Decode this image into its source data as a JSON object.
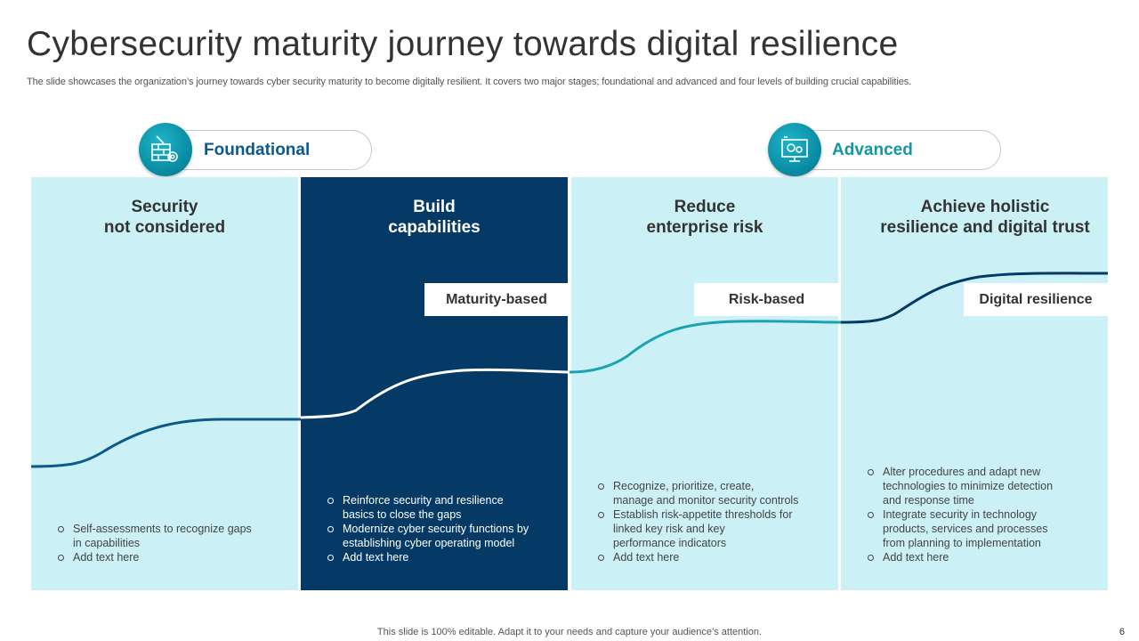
{
  "title": "Cybersecurity maturity journey towards digital resilience",
  "subtitle": "The slide showcases the organization’s journey towards cyber security maturity to become digitally resilient. It covers two major stages; foundational and advanced and four levels of building crucial capabilities.",
  "stages": {
    "foundational": {
      "label": "Foundational",
      "icon": "security-wall-gear-icon",
      "color": "#0c5a8c"
    },
    "advanced": {
      "label": "Advanced",
      "icon": "monitor-gears-icon",
      "color": "#1595a5"
    }
  },
  "columns": [
    {
      "title_lines": [
        "Security",
        "not considered"
      ],
      "bullets": [
        [
          "Self-assessments to recognize gaps",
          "in capabilities"
        ],
        [
          "Add text here"
        ]
      ]
    },
    {
      "title_lines": [
        "Build",
        "capabilities"
      ],
      "tag": "Maturity-based",
      "bullets": [
        [
          "Reinforce security and resilience",
          "basics to close the gaps"
        ],
        [
          "Modernize cyber security functions by",
          "establishing cyber operating model"
        ],
        [
          "Add text here"
        ]
      ]
    },
    {
      "title_lines": [
        "Reduce",
        "enterprise risk"
      ],
      "tag": "Risk-based",
      "bullets": [
        [
          "Recognize, prioritize, create,",
          "manage and monitor security controls"
        ],
        [
          "Establish risk-appetite thresholds for",
          "linked key risk and key",
          "performance indicators"
        ],
        [
          "Add text here"
        ]
      ]
    },
    {
      "title_lines": [
        "Achieve holistic",
        "resilience and digital trust"
      ],
      "tag": "Digital resilience",
      "bullets": [
        [
          "Alter procedures and adapt new",
          "technologies to minimize detection",
          "and response time"
        ],
        [
          "Integrate security in technology",
          "products, services and processes",
          "from planning to implementation"
        ],
        [
          "Add text here"
        ]
      ]
    }
  ],
  "colors": {
    "light_panel": "#cbf1f6",
    "dark_panel": "#053a66",
    "curve_blue": "#0c5a8c",
    "curve_white": "#ffffff",
    "curve_teal": "#1aa3b3",
    "curve_navy": "#053a66"
  },
  "footer": "This slide is 100% editable. Adapt it to your needs and capture your audience’s attention.",
  "page_number": "6"
}
